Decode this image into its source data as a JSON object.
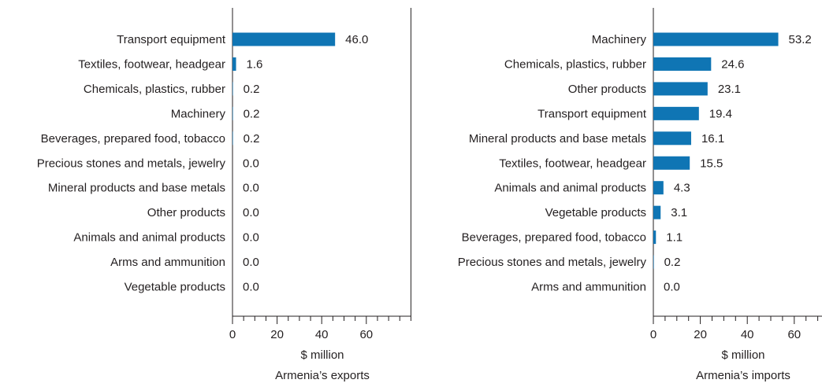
{
  "chart_data": [
    {
      "type": "bar",
      "orientation": "horizontal",
      "categories": [
        "Transport equipment",
        "Textiles, footwear, headgear",
        "Chemicals, plastics, rubber",
        "Machinery",
        "Beverages, prepared food, tobacco",
        "Precious stones and metals, jewelry",
        "Mineral products and base metals",
        "Other products",
        "Animals and animal products",
        "Arms and ammunition",
        "Vegetable products"
      ],
      "values": [
        46.0,
        1.6,
        0.2,
        0.2,
        0.2,
        0.0,
        0.0,
        0.0,
        0.0,
        0.0,
        0.0
      ],
      "value_labels": [
        "46.0",
        "1.6",
        "0.2",
        "0.2",
        "0.2",
        "0.0",
        "0.0",
        "0.0",
        "0.0",
        "0.0",
        "0.0"
      ],
      "xlabel": "$ million",
      "caption": "Armenia’s exports",
      "xlim": [
        0,
        80
      ],
      "xticks": [
        0,
        20,
        40,
        60
      ],
      "xtick_labels": [
        "0",
        "20",
        "40",
        "60"
      ],
      "minor_tick_step": 5,
      "grid": false,
      "bar_color": "#0f75b4"
    },
    {
      "type": "bar",
      "orientation": "horizontal",
      "categories": [
        "Machinery",
        "Chemicals, plastics, rubber",
        "Other products",
        "Transport equipment",
        "Mineral products and base metals",
        "Textiles, footwear, headgear",
        "Animals and animal products",
        "Vegetable products",
        "Beverages, prepared food, tobacco",
        "Precious stones and metals, jewelry",
        "Arms and ammunition"
      ],
      "values": [
        53.2,
        24.6,
        23.1,
        19.4,
        16.1,
        15.5,
        4.3,
        3.1,
        1.1,
        0.2,
        0.0
      ],
      "value_labels": [
        "53.2",
        "24.6",
        "23.1",
        "19.4",
        "16.1",
        "15.5",
        "4.3",
        "3.1",
        "1.1",
        "0.2",
        "0.0"
      ],
      "xlabel": "$ million",
      "caption": "Armenia’s imports",
      "xlim": [
        0,
        80
      ],
      "xticks": [
        0,
        20,
        40,
        60
      ],
      "xtick_labels": [
        "0",
        "20",
        "40",
        "60"
      ],
      "minor_tick_step": 5,
      "grid": false,
      "bar_color": "#0f75b4"
    }
  ]
}
